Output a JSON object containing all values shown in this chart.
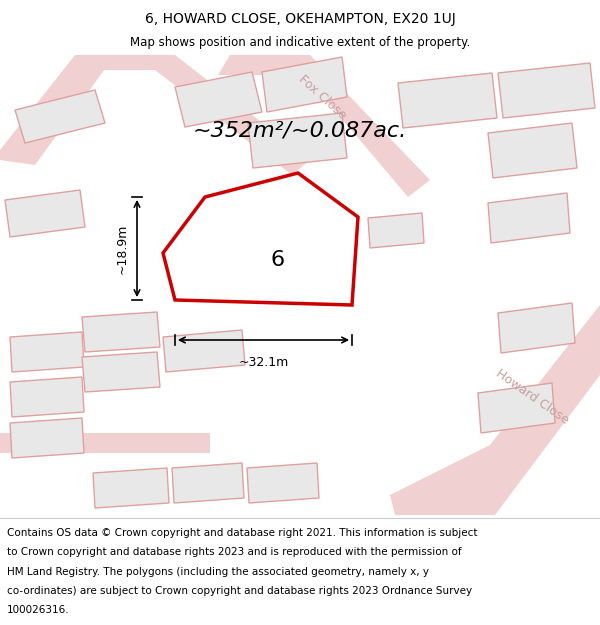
{
  "title_line1": "6, HOWARD CLOSE, OKEHAMPTON, EX20 1UJ",
  "title_line2": "Map shows position and indicative extent of the property.",
  "area_text": "~352m²/~0.087ac.",
  "plot_number": "6",
  "dim_width": "~32.1m",
  "dim_height": "~18.9m",
  "background_color": "#ffffff",
  "map_bg_color": "#f5f5f5",
  "road_color": "#f0d0d0",
  "building_color": "#e8e8e8",
  "building_outline": "#e0a0a0",
  "plot_fill": "#ffffff",
  "plot_outline": "#cc0000",
  "road_label_color": "#c8a0a0",
  "footer_lines": [
    "Contains OS data © Crown copyright and database right 2021. This information is subject",
    "to Crown copyright and database rights 2023 and is reproduced with the permission of",
    "HM Land Registry. The polygons (including the associated geometry, namely x, y",
    "co-ordinates) are subject to Crown copyright and database rights 2023 Ordnance Survey",
    "100026316."
  ],
  "footer_fontsize": 7.5,
  "title_fontsize": 10,
  "area_fontsize": 16,
  "plot_label_fontsize": 16
}
